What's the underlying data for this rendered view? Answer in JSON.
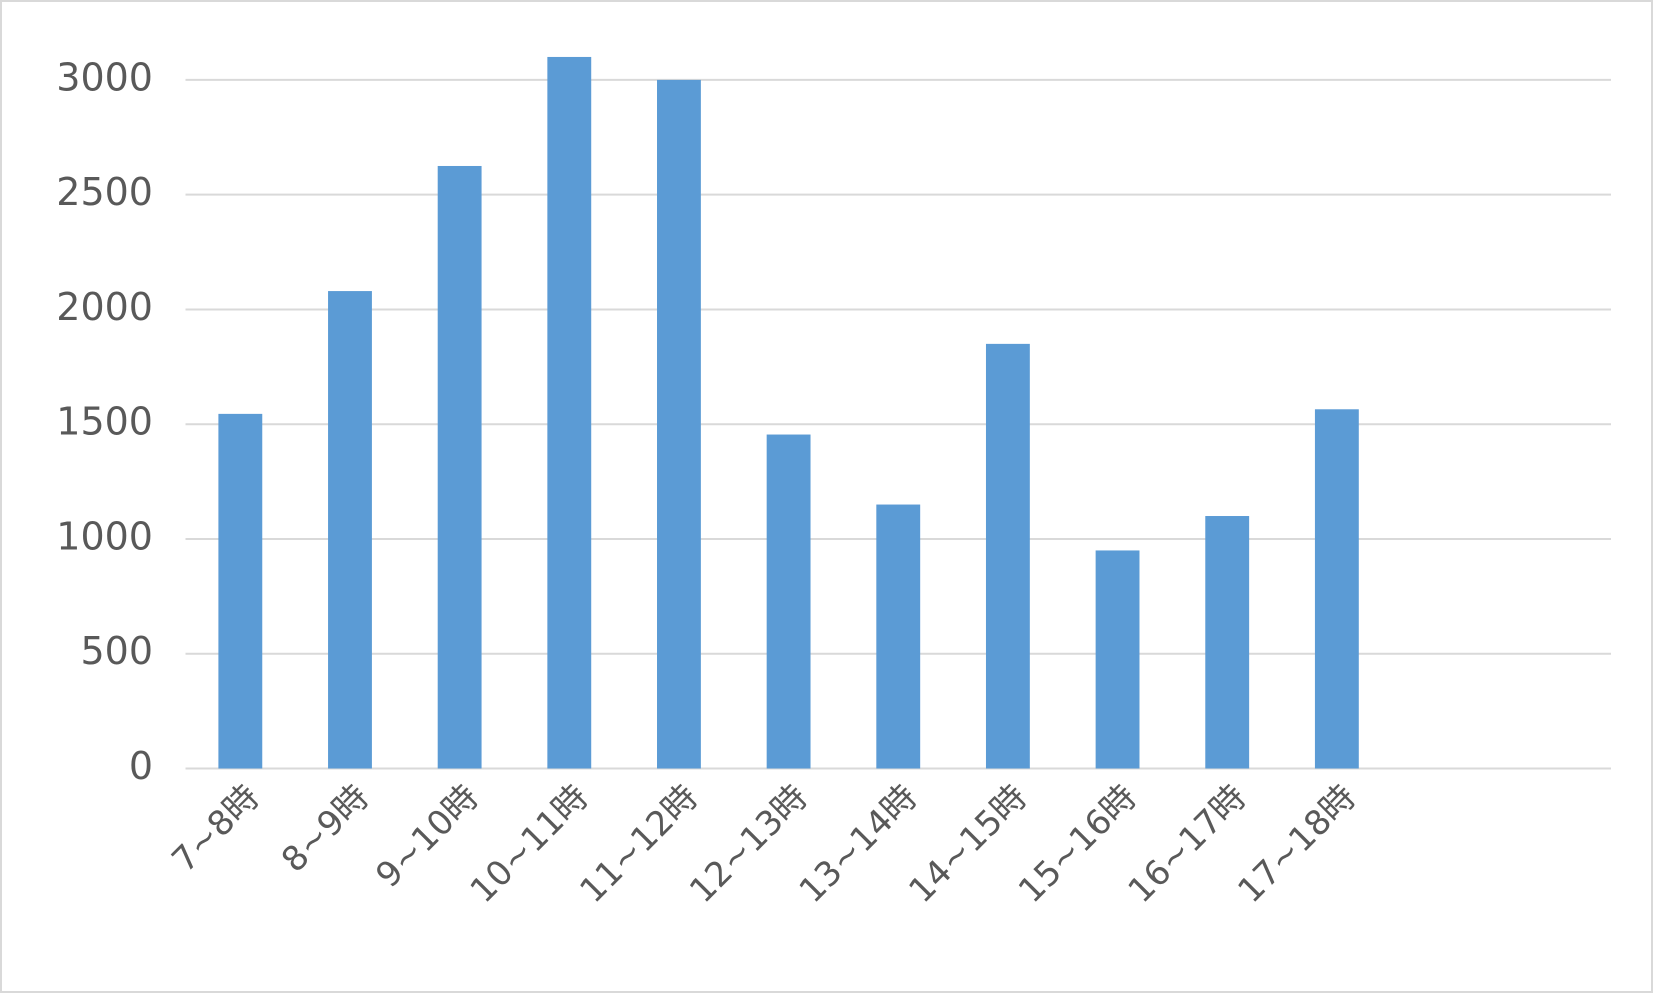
{
  "chart_data": {
    "type": "bar",
    "categories": [
      "7~8時",
      "8~9時",
      "9~10時",
      "10~11時",
      "11~12時",
      "12~13時",
      "13~14時",
      "14~15時",
      "15~16時",
      "16~17時",
      "17~18時",
      null,
      null
    ],
    "values": [
      1545,
      2080,
      2625,
      3100,
      3000,
      1455,
      1150,
      1850,
      950,
      1100,
      1565,
      null,
      null
    ],
    "color": "#5b9bd5",
    "ylim": [
      0,
      3200
    ],
    "yticks": [
      0,
      500,
      1000,
      1500,
      2000,
      2500,
      3000
    ],
    "grid": true
  }
}
